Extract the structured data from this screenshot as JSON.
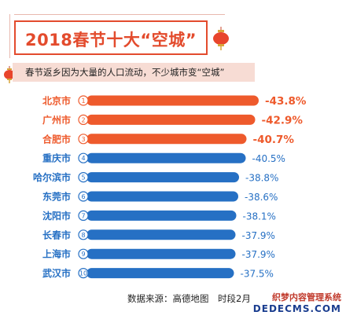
{
  "header": {
    "title": "2018春节十大“空城”",
    "subtitle": "春节返乡因为大量的人口流动，不少城市变“空城”"
  },
  "footer": {
    "source": "数据来源：高德地图　时段2月"
  },
  "watermark": {
    "line1": "织梦内容管理系统",
    "line2": "DEDECMS.COM"
  },
  "colors": {
    "accent_red": "#ee5a2c",
    "accent_blue": "#2670c4",
    "title_red": "#e34b2d"
  },
  "chart_data": {
    "type": "bar",
    "orientation": "horizontal",
    "categories": [
      "北京市",
      "广州市",
      "合肥市",
      "重庆市",
      "哈尔滨市",
      "东莞市",
      "沈阳市",
      "长春市",
      "上海市",
      "武汉市"
    ],
    "ranks": [
      "1",
      "2",
      "3",
      "4",
      "5",
      "6",
      "7",
      "8",
      "9",
      "10"
    ],
    "values": [
      -43.8,
      -42.9,
      -40.7,
      -40.5,
      -38.8,
      -38.6,
      -38.1,
      -37.9,
      -37.9,
      -37.5
    ],
    "value_labels": [
      "-43.8%",
      "-42.9%",
      "-40.7%",
      "-40.5%",
      "-38.8%",
      "-38.6%",
      "-38.1%",
      "-37.9%",
      "-37.9%",
      "-37.5%"
    ],
    "highlight_top": 3,
    "title": "2018春节十大“空城”"
  }
}
